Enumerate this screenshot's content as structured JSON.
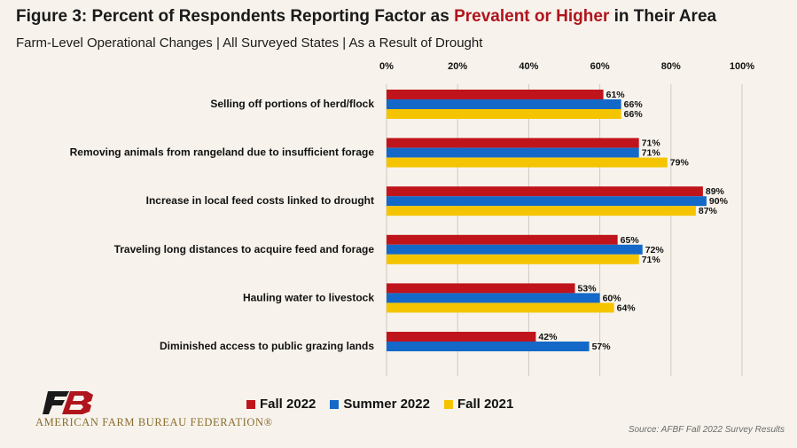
{
  "title": {
    "prefix": "Figure 3: Percent of Respondents Reporting Factor as ",
    "highlight": "Prevalent or Higher",
    "suffix": " in Their Area"
  },
  "subtitle": "Farm-Level Operational Changes | All Surveyed States | As a Result of Drought",
  "source": "Source: AFBF Fall 2022 Survey Results",
  "logo": {
    "text": "AMERICAN FARM BUREAU FEDERATION®",
    "mark": "FB"
  },
  "colors": {
    "fall2022": "#c0141c",
    "summer2022": "#1469c8",
    "fall2021": "#f5c400",
    "highlight": "#b0141c"
  },
  "chart_data": {
    "type": "bar",
    "orientation": "horizontal",
    "categories": [
      "Selling off portions of herd/flock",
      "Removing animals from rangeland due to insufficient forage",
      "Increase in local feed costs linked to drought",
      "Traveling long distances to acquire feed and forage",
      "Hauling water to livestock",
      "Diminished access to public grazing lands"
    ],
    "series": [
      {
        "name": "Fall 2022",
        "color": "#c0141c",
        "values": [
          61,
          71,
          89,
          65,
          53,
          42
        ],
        "labels": [
          "61%",
          "71%",
          "89%",
          "65%",
          "53%",
          "42%"
        ]
      },
      {
        "name": "Summer 2022",
        "color": "#1469c8",
        "values": [
          66,
          71,
          90,
          72,
          60,
          57
        ],
        "labels": [
          "66%",
          "71%",
          "90%",
          "72%",
          "60%",
          "57%"
        ]
      },
      {
        "name": "Fall 2021",
        "color": "#f5c400",
        "values": [
          66,
          79,
          87,
          71,
          64,
          null
        ],
        "labels": [
          "66%",
          "79%",
          "87%",
          "71%",
          "64%",
          null
        ]
      }
    ],
    "xlim": [
      0,
      100
    ],
    "xticks": [
      "0%",
      "20%",
      "40%",
      "60%",
      "80%",
      "100%"
    ],
    "xtick_values": [
      0,
      20,
      40,
      60,
      80,
      100
    ],
    "axis_position": "top",
    "grid": true,
    "legend": "bottom"
  }
}
